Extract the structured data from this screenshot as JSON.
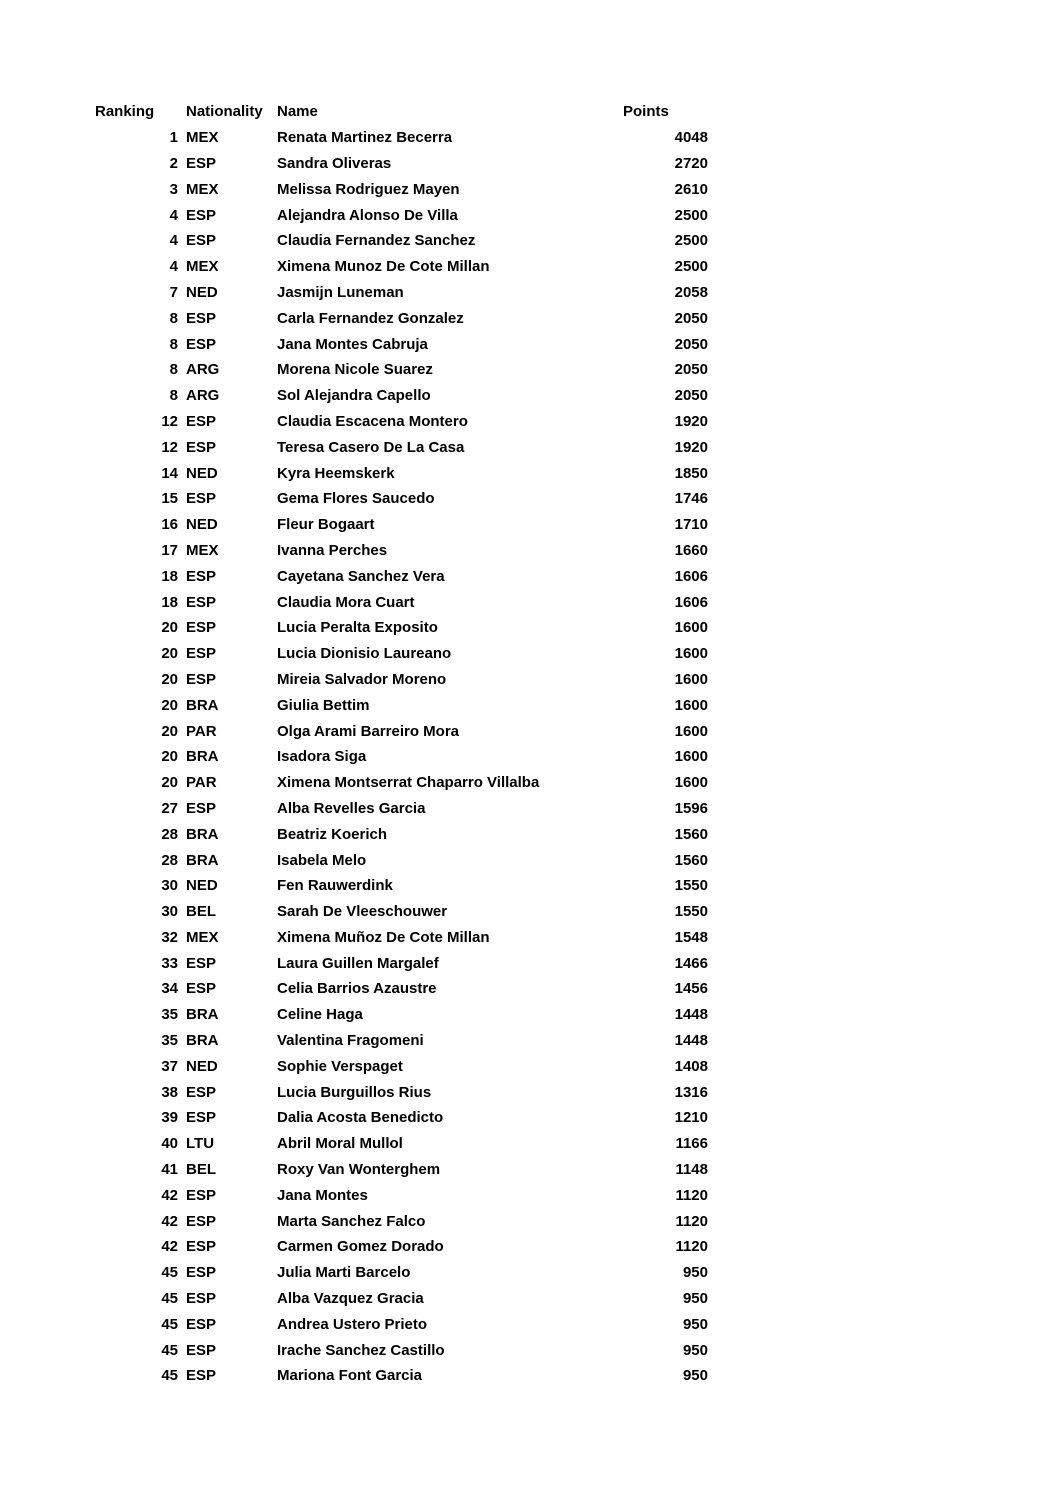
{
  "page": {
    "background_color": "#ffffff",
    "text_color": "#000000"
  },
  "table": {
    "headers": {
      "ranking": "Ranking",
      "nationality": "Nationality",
      "name": "Name",
      "points": "Points"
    },
    "rows": [
      {
        "rank": "1",
        "nationality": "MEX",
        "name": "Renata Martinez Becerra",
        "points": "4048"
      },
      {
        "rank": "2",
        "nationality": "ESP",
        "name": "Sandra Oliveras",
        "points": "2720"
      },
      {
        "rank": "3",
        "nationality": "MEX",
        "name": "Melissa Rodriguez Mayen",
        "points": "2610"
      },
      {
        "rank": "4",
        "nationality": "ESP",
        "name": "Alejandra Alonso De Villa",
        "points": "2500"
      },
      {
        "rank": "4",
        "nationality": "ESP",
        "name": "Claudia Fernandez Sanchez",
        "points": "2500"
      },
      {
        "rank": "4",
        "nationality": "MEX",
        "name": "Ximena Munoz De Cote Millan",
        "points": "2500"
      },
      {
        "rank": "7",
        "nationality": "NED",
        "name": "Jasmijn Luneman",
        "points": "2058"
      },
      {
        "rank": "8",
        "nationality": "ESP",
        "name": "Carla Fernandez Gonzalez",
        "points": "2050"
      },
      {
        "rank": "8",
        "nationality": "ESP",
        "name": "Jana Montes Cabruja",
        "points": "2050"
      },
      {
        "rank": "8",
        "nationality": "ARG",
        "name": "Morena Nicole Suarez",
        "points": "2050"
      },
      {
        "rank": "8",
        "nationality": "ARG",
        "name": "Sol Alejandra Capello",
        "points": "2050"
      },
      {
        "rank": "12",
        "nationality": "ESP",
        "name": "Claudia Escacena Montero",
        "points": "1920"
      },
      {
        "rank": "12",
        "nationality": "ESP",
        "name": "Teresa Casero De La Casa",
        "points": "1920"
      },
      {
        "rank": "14",
        "nationality": "NED",
        "name": "Kyra Heemskerk",
        "points": "1850"
      },
      {
        "rank": "15",
        "nationality": "ESP",
        "name": "Gema Flores Saucedo",
        "points": "1746"
      },
      {
        "rank": "16",
        "nationality": "NED",
        "name": "Fleur Bogaart",
        "points": "1710"
      },
      {
        "rank": "17",
        "nationality": "MEX",
        "name": "Ivanna Perches",
        "points": "1660"
      },
      {
        "rank": "18",
        "nationality": "ESP",
        "name": "Cayetana Sanchez Vera",
        "points": "1606"
      },
      {
        "rank": "18",
        "nationality": "ESP",
        "name": "Claudia Mora Cuart",
        "points": "1606"
      },
      {
        "rank": "20",
        "nationality": "ESP",
        "name": "Lucia Peralta Exposito",
        "points": "1600"
      },
      {
        "rank": "20",
        "nationality": "ESP",
        "name": "Lucia Dionisio Laureano",
        "points": "1600"
      },
      {
        "rank": "20",
        "nationality": "ESP",
        "name": "Mireia Salvador Moreno",
        "points": "1600"
      },
      {
        "rank": "20",
        "nationality": "BRA",
        "name": "Giulia Bettim",
        "points": "1600"
      },
      {
        "rank": "20",
        "nationality": "PAR",
        "name": "Olga Arami Barreiro Mora",
        "points": "1600"
      },
      {
        "rank": "20",
        "nationality": "BRA",
        "name": "Isadora Siga",
        "points": "1600"
      },
      {
        "rank": "20",
        "nationality": "PAR",
        "name": "Ximena Montserrat Chaparro Villalba",
        "points": "1600"
      },
      {
        "rank": "27",
        "nationality": "ESP",
        "name": "Alba Revelles Garcia",
        "points": "1596"
      },
      {
        "rank": "28",
        "nationality": "BRA",
        "name": "Beatriz Koerich",
        "points": "1560"
      },
      {
        "rank": "28",
        "nationality": "BRA",
        "name": "Isabela Melo",
        "points": "1560"
      },
      {
        "rank": "30",
        "nationality": "NED",
        "name": "Fen Rauwerdink",
        "points": "1550"
      },
      {
        "rank": "30",
        "nationality": "BEL",
        "name": "Sarah De Vleeschouwer",
        "points": "1550"
      },
      {
        "rank": "32",
        "nationality": "MEX",
        "name": "Ximena Muñoz De Cote Millan",
        "points": "1548"
      },
      {
        "rank": "33",
        "nationality": "ESP",
        "name": "Laura Guillen Margalef",
        "points": "1466"
      },
      {
        "rank": "34",
        "nationality": "ESP",
        "name": "Celia Barrios Azaustre",
        "points": "1456"
      },
      {
        "rank": "35",
        "nationality": "BRA",
        "name": "Celine Haga",
        "points": "1448"
      },
      {
        "rank": "35",
        "nationality": "BRA",
        "name": "Valentina Fragomeni",
        "points": "1448"
      },
      {
        "rank": "37",
        "nationality": "NED",
        "name": "Sophie Verspaget",
        "points": "1408"
      },
      {
        "rank": "38",
        "nationality": "ESP",
        "name": "Lucia Burguillos Rius",
        "points": "1316"
      },
      {
        "rank": "39",
        "nationality": "ESP",
        "name": "Dalia Acosta Benedicto",
        "points": "1210"
      },
      {
        "rank": "40",
        "nationality": "LTU",
        "name": "Abril Moral Mullol",
        "points": "1166"
      },
      {
        "rank": "41",
        "nationality": "BEL",
        "name": "Roxy Van Wonterghem",
        "points": "1148"
      },
      {
        "rank": "42",
        "nationality": "ESP",
        "name": "Jana Montes",
        "points": "1120"
      },
      {
        "rank": "42",
        "nationality": "ESP",
        "name": "Marta Sanchez Falco",
        "points": "1120"
      },
      {
        "rank": "42",
        "nationality": "ESP",
        "name": "Carmen Gomez Dorado",
        "points": "1120"
      },
      {
        "rank": "45",
        "nationality": "ESP",
        "name": "Julia Marti Barcelo",
        "points": "950"
      },
      {
        "rank": "45",
        "nationality": "ESP",
        "name": "Alba Vazquez Gracia",
        "points": "950"
      },
      {
        "rank": "45",
        "nationality": "ESP",
        "name": "Andrea Ustero Prieto",
        "points": "950"
      },
      {
        "rank": "45",
        "nationality": "ESP",
        "name": "Irache Sanchez Castillo",
        "points": "950"
      },
      {
        "rank": "45",
        "nationality": "ESP",
        "name": "Mariona Font Garcia",
        "points": "950"
      }
    ]
  }
}
